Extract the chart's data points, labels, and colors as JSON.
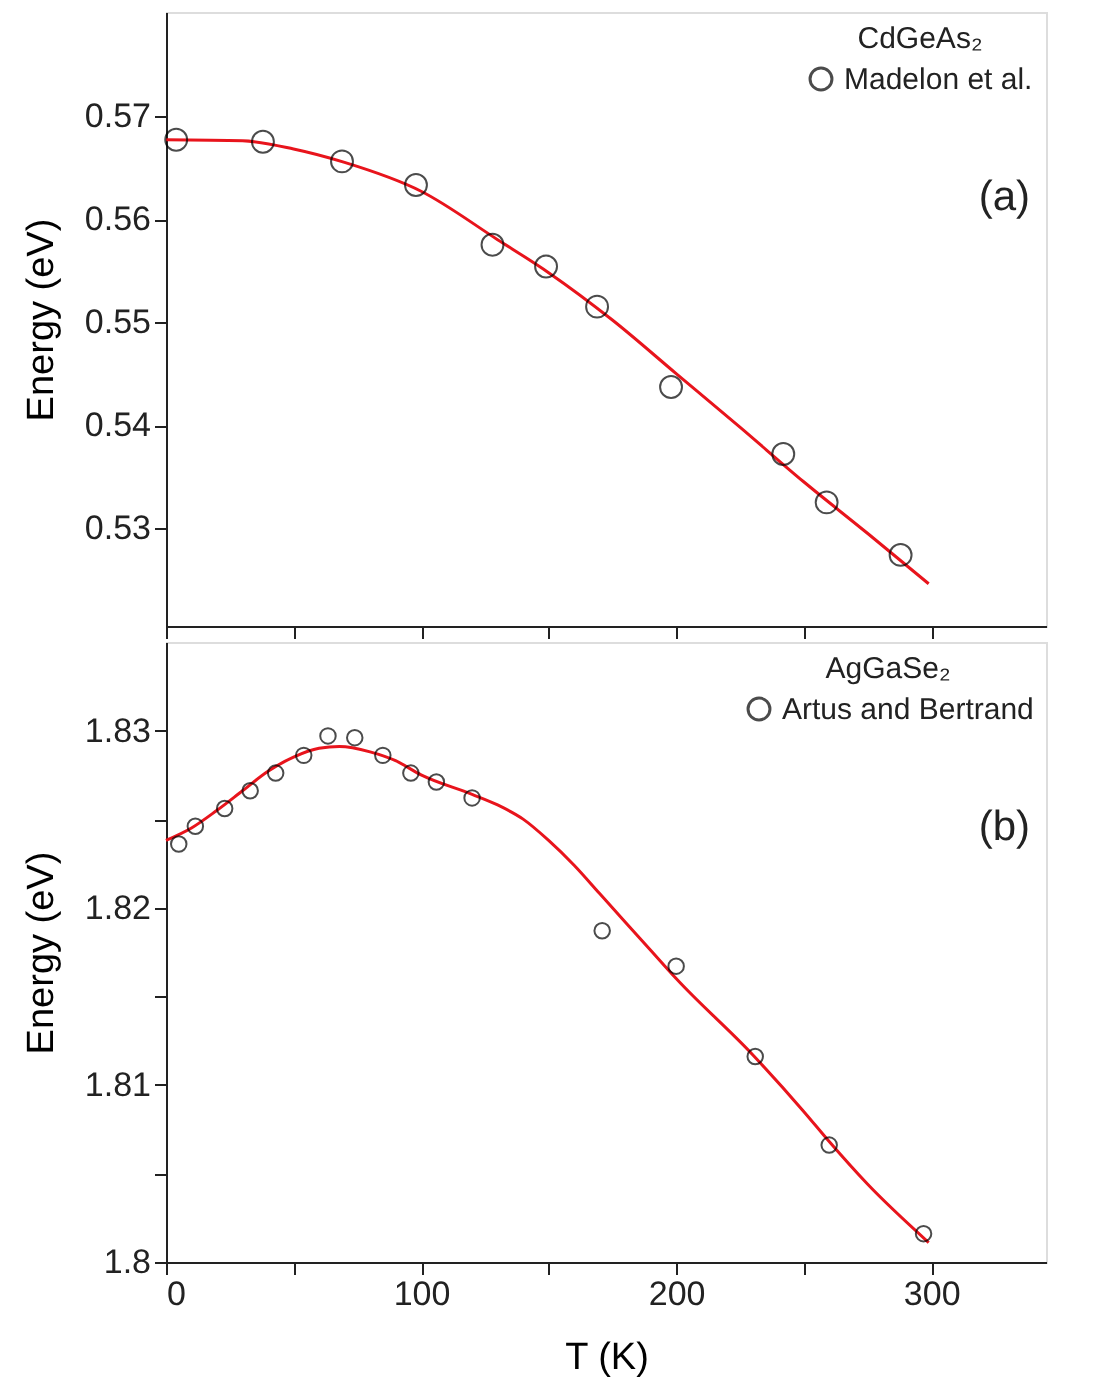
{
  "chart_data": [
    {
      "type": "scatter",
      "legend_title": "CdGeAs₂",
      "ylabel": "Energy (eV)",
      "annotations": [
        "(a)"
      ],
      "xlim": [
        0,
        345
      ],
      "xticks": [
        0,
        {
          "value": 50,
          "label": null
        },
        100,
        {
          "value": 150,
          "label": null
        },
        200,
        {
          "value": 250,
          "label": null
        },
        300
      ],
      "ylim": [
        0.5205,
        0.5801
      ],
      "yticks": [
        0.53,
        0.54,
        0.55,
        0.56,
        0.57
      ],
      "tick_labels": "y",
      "grid": false,
      "legend": "top right",
      "series": [
        {
          "type": "line",
          "color": "#e8141c",
          "line_style": "solid",
          "marker": "none",
          "x": [
            0,
            30,
            50,
            70,
            100,
            130,
            150,
            175,
            200,
            225,
            250,
            275,
            299
          ],
          "values": [
            0.5677,
            0.5676,
            0.5668,
            0.5655,
            0.5627,
            0.558,
            0.5548,
            0.5502,
            0.545,
            0.5398,
            0.5345,
            0.5295,
            0.5246
          ]
        },
        {
          "name": "Madelon et al.",
          "color": "#000000",
          "marker": "circle",
          "x": [
            4,
            38,
            69,
            98,
            128,
            149,
            169,
            198,
            242,
            259,
            288
          ],
          "values": [
            0.5677,
            0.5675,
            0.5656,
            0.5633,
            0.5575,
            0.5554,
            0.5515,
            0.5437,
            0.5372,
            0.5325,
            0.5274
          ]
        }
      ]
    },
    {
      "type": "scatter",
      "legend_title": "AgGaSe₂",
      "xlabel": "T (K)",
      "ylabel": "Energy (eV)",
      "annotations": [
        "(b)"
      ],
      "xlim": [
        0,
        345
      ],
      "xticks": [
        0,
        {
          "value": 50,
          "label": null
        },
        100,
        {
          "value": 150,
          "label": null
        },
        200,
        {
          "value": 250,
          "label": null
        },
        300
      ],
      "ylim": [
        1.8,
        1.835
      ],
      "yticks": [
        1.8,
        {
          "value": 1.805,
          "label": null
        },
        1.81,
        {
          "value": 1.815,
          "label": null
        },
        1.82,
        {
          "value": 1.825,
          "label": null
        },
        1.83
      ],
      "grid": false,
      "legend": "top right",
      "series": [
        {
          "type": "line",
          "color": "#e8141c",
          "line_style": "solid",
          "marker": "none",
          "x": [
            0,
            10,
            20,
            30,
            40,
            50,
            60,
            68,
            80,
            90,
            100,
            120,
            130,
            140,
            150,
            160,
            170,
            180,
            190,
            200,
            230,
            250,
            260,
            275,
            299
          ],
          "values": [
            1.8238,
            1.8245,
            1.8255,
            1.8266,
            1.8277,
            1.8285,
            1.829,
            1.8291,
            1.8288,
            1.8283,
            1.8275,
            1.8264,
            1.8258,
            1.825,
            1.8238,
            1.8224,
            1.8208,
            1.8192,
            1.8176,
            1.816,
            1.8117,
            1.8085,
            1.8068,
            1.8044,
            1.8011
          ]
        },
        {
          "name": "Artus and Bertrand",
          "color": "#000000",
          "marker": "circle",
          "x": [
            5,
            11.5,
            23,
            33,
            43,
            54,
            63.5,
            74,
            85,
            96,
            106,
            120,
            171,
            200,
            231,
            260,
            297
          ],
          "values": [
            1.8236,
            1.8246,
            1.8256,
            1.8266,
            1.8276,
            1.8286,
            1.8297,
            1.8296,
            1.8286,
            1.8276,
            1.8271,
            1.8262,
            1.8187,
            1.8167,
            1.8116,
            1.8066,
            1.8016
          ]
        }
      ]
    }
  ]
}
